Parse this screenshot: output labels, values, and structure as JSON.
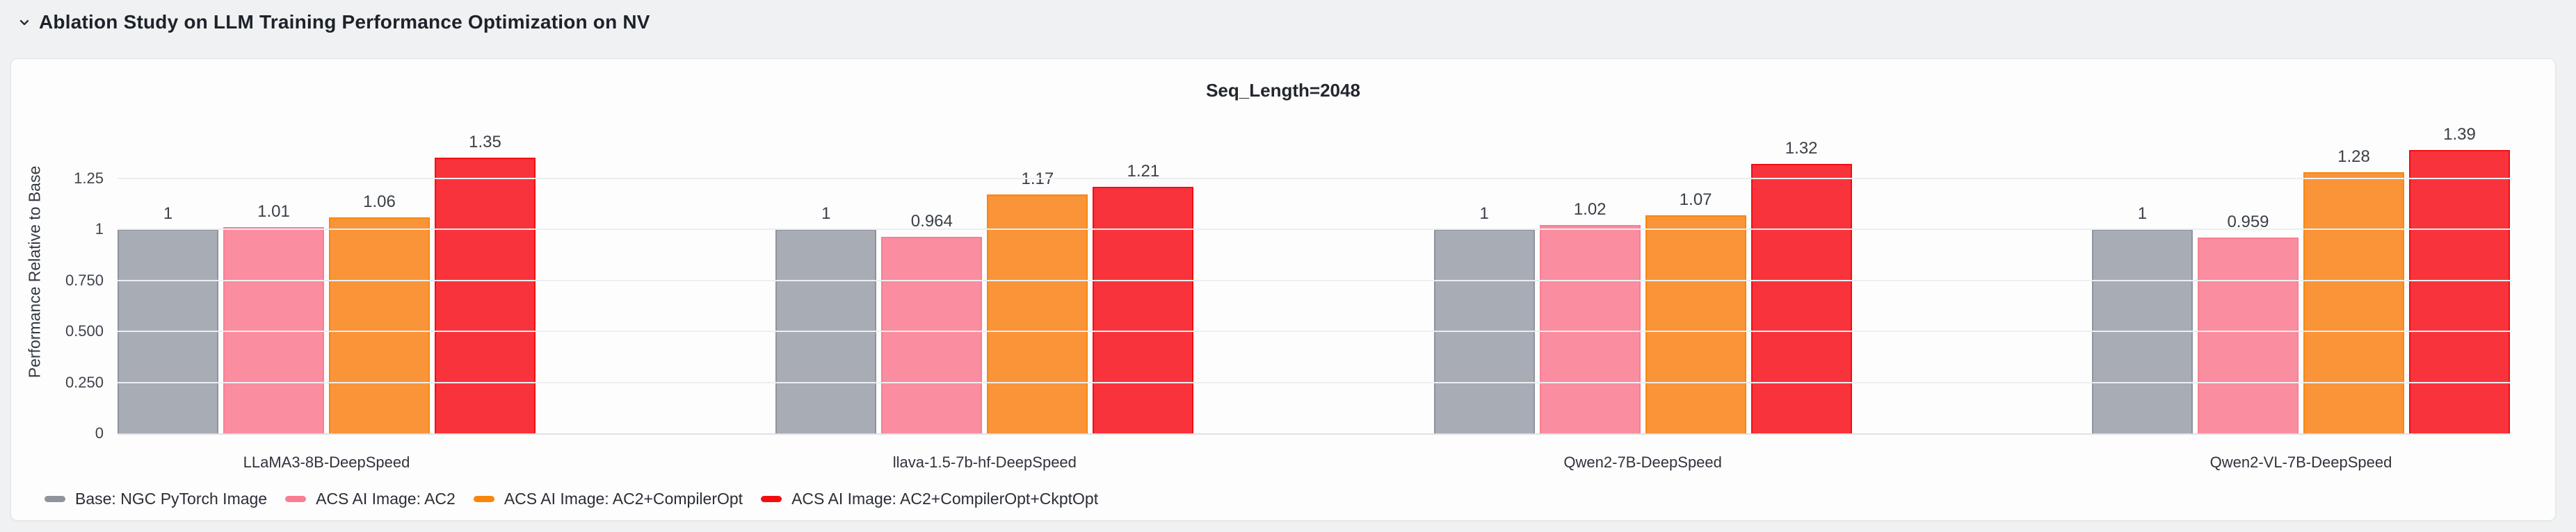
{
  "header": {
    "title": "Ablation Study on LLM Training Performance Optimization on NV",
    "collapse_icon": "chevron-down"
  },
  "panel": {
    "background": "#FDFDFE",
    "border_color": "#E3E6E6"
  },
  "colors": {
    "page_background": "#F0F1F2",
    "grid_line": "#ECEEEF",
    "axis_line": "#DEE1E2",
    "header_text": "#1D222A",
    "tick_text": "#3E434B",
    "value_text": "#3A3F46"
  },
  "chart_data": {
    "type": "bar",
    "title": "Seq_Length=2048",
    "xlabel": "",
    "ylabel": "Performance Relative to Base",
    "ylim": [
      0,
      1.6
    ],
    "grid": "horizontal",
    "legend_position": "bottom-left",
    "categories": [
      "LLaMA3-8B-DeepSpeed",
      "llava-1.5-7b-hf-DeepSpeed",
      "Qwen2-7B-DeepSpeed",
      "Qwen2-VL-7B-DeepSpeed"
    ],
    "yticks": [
      {
        "value": 0,
        "label": "0"
      },
      {
        "value": 0.25,
        "label": "0.250"
      },
      {
        "value": 0.5,
        "label": "0.500"
      },
      {
        "value": 0.75,
        "label": "0.750"
      },
      {
        "value": 1,
        "label": "1"
      },
      {
        "value": 1.25,
        "label": "1.25"
      }
    ],
    "series": [
      {
        "name": "Base: NGC PyTorch Image",
        "color": "#8E939E",
        "fill": "#A8ACB5",
        "values": [
          1,
          1,
          1,
          1
        ],
        "labels": [
          "1",
          "1",
          "1",
          "1"
        ]
      },
      {
        "name": "ACS AI Image: AC2",
        "color": "#F97E91",
        "fill": "#FA8DA0",
        "values": [
          1.01,
          0.964,
          1.02,
          0.959
        ],
        "labels": [
          "1.01",
          "0.964",
          "1.02",
          "0.959"
        ]
      },
      {
        "name": "ACS AI Image: AC2+CompilerOpt",
        "color": "#F8860D",
        "fill": "#FA9439",
        "values": [
          1.06,
          1.17,
          1.07,
          1.28
        ],
        "labels": [
          "1.06",
          "1.17",
          "1.07",
          "1.28"
        ]
      },
      {
        "name": "ACS AI Image: AC2+CompilerOpt+CkptOpt",
        "color": "#F20D12",
        "fill": "#F9333B",
        "values": [
          1.35,
          1.21,
          1.32,
          1.39
        ],
        "labels": [
          "1.35",
          "1.21",
          "1.32",
          "1.39"
        ]
      }
    ]
  }
}
